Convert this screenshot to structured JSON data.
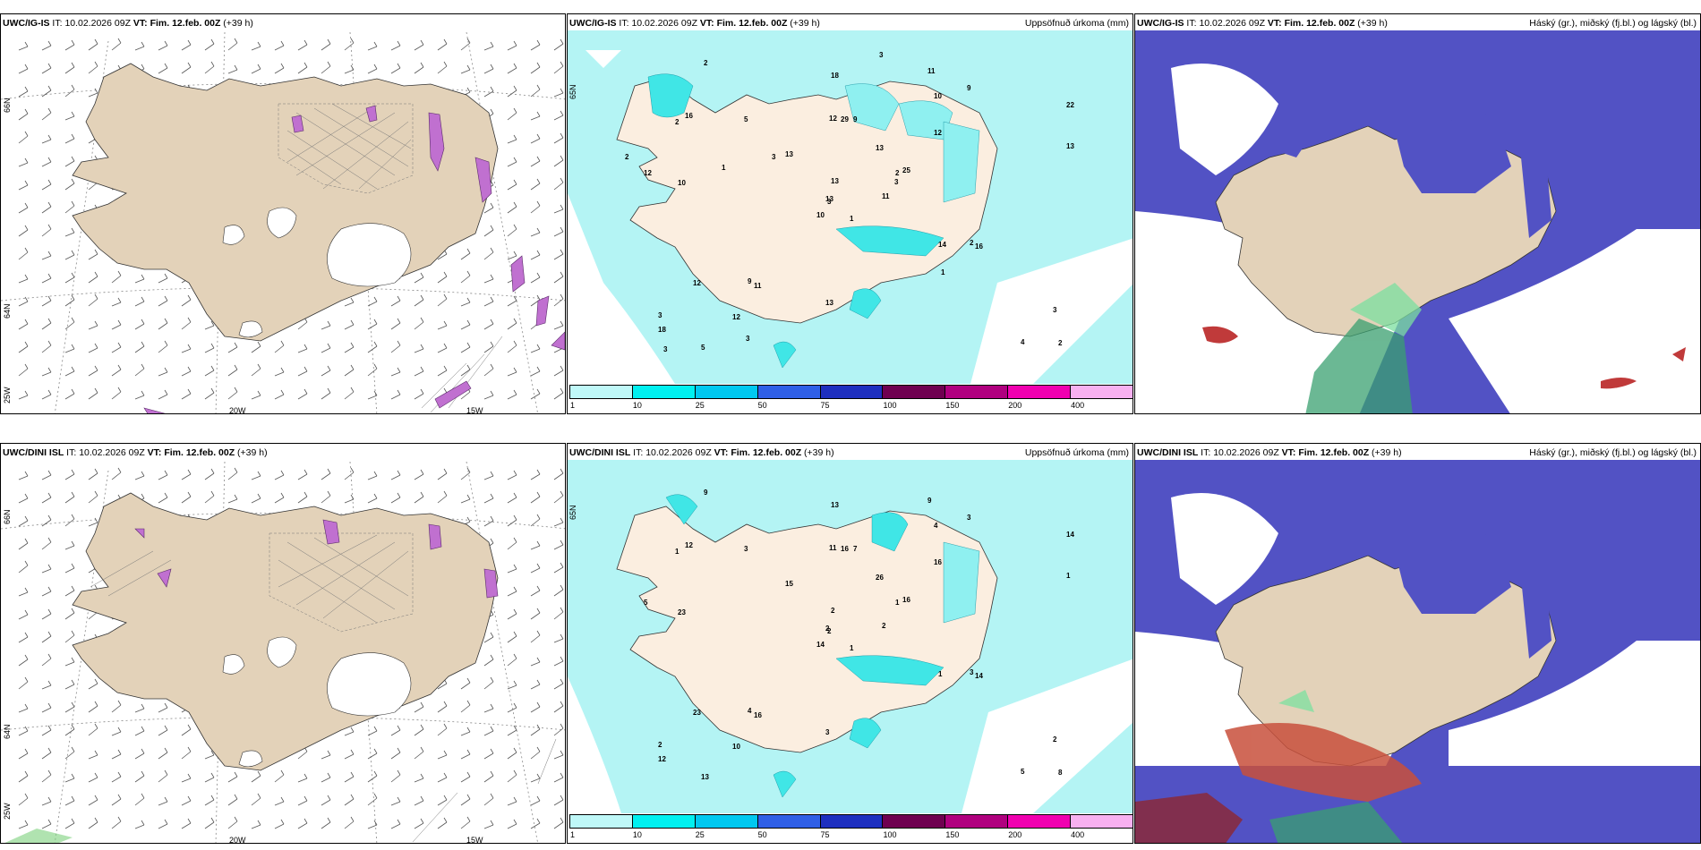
{
  "rows": [
    {
      "model": "UWC/IG-IS",
      "panels": [
        {
          "kind": "wind",
          "model": "UWC/IG-IS",
          "it_label": "IT:",
          "it_value": "10.02.2026 09Z",
          "vt_label": "VT:",
          "vt_value": "Fim. 12.feb. 00Z",
          "lead": "(+39 h)",
          "right_title": "",
          "lon_labels": [
            "20W",
            "15W",
            "25W"
          ],
          "lat_labels": [
            "66N",
            "64N"
          ]
        },
        {
          "kind": "precip",
          "model": "UWC/IG-IS",
          "it_label": "IT:",
          "it_value": "10.02.2026 09Z",
          "vt_label": "VT:",
          "vt_value": "Fim. 12.feb. 00Z",
          "lead": "(+39 h)",
          "right_title": "Uppsöfnuð úrkoma (mm)",
          "lat_labels": [
            "65N"
          ]
        },
        {
          "kind": "cloud",
          "model": "UWC/IG-IS",
          "it_label": "IT:",
          "it_value": "10.02.2026 09Z",
          "vt_label": "VT:",
          "vt_value": "Fim. 12.feb. 00Z",
          "lead": "(+39 h)",
          "right_title": "Háský (gr.), miðský (fj.bl.) og lágský (bl.)"
        }
      ]
    },
    {
      "model": "UWC/DINI ISL",
      "panels": [
        {
          "kind": "wind",
          "model": "UWC/DINI ISL",
          "it_label": "IT:",
          "it_value": "10.02.2026 09Z",
          "vt_label": "VT:",
          "vt_value": "Fim. 12.feb. 00Z",
          "lead": "(+39 h)",
          "right_title": "",
          "lon_labels": [
            "20W",
            "15W",
            "25W"
          ],
          "lat_labels": [
            "66N",
            "64N"
          ]
        },
        {
          "kind": "precip",
          "model": "UWC/DINI ISL",
          "it_label": "IT:",
          "it_value": "10.02.2026 09Z",
          "vt_label": "VT:",
          "vt_value": "Fim. 12.feb. 00Z",
          "lead": "(+39 h)",
          "right_title": "Uppsöfnuð úrkoma (mm)",
          "lat_labels": [
            "65N"
          ]
        },
        {
          "kind": "cloud",
          "model": "UWC/DINI ISL",
          "it_label": "IT:",
          "it_value": "10.02.2026 09Z",
          "vt_label": "VT:",
          "vt_value": "Fim. 12.feb. 00Z",
          "lead": "(+39 h)",
          "right_title": "Háský (gr.), miðský (fj.bl.) og lágský (bl.)"
        }
      ]
    }
  ],
  "colorbar": {
    "ticks": [
      "1",
      "10",
      "25",
      "50",
      "75",
      "100",
      "150",
      "200",
      "400"
    ],
    "colors": [
      "#bff8f8",
      "#00f0f0",
      "#00c8f0",
      "#2f5fe6",
      "#1e2fbf",
      "#6f0050",
      "#b0007f",
      "#f000b0",
      "#f8b0f0"
    ]
  },
  "precip_values": {
    "top": [
      "1",
      "2",
      "3",
      "3",
      "2",
      "11",
      "11",
      "9",
      "10",
      "11",
      "2",
      "2",
      "10",
      "22",
      "10",
      "12",
      "5",
      "12",
      "13",
      "12",
      "13",
      "18",
      "12",
      "29",
      "25",
      "16",
      "16",
      "18",
      "12",
      "14",
      "13",
      "13",
      "13",
      "13",
      "5",
      "9",
      "9",
      "4",
      "3",
      "2",
      "3",
      "3",
      "1",
      "1",
      "3",
      "2",
      "3",
      "3"
    ],
    "bottom": [
      "1",
      "1",
      "2",
      "2",
      "1",
      "16",
      "9",
      "7",
      "4",
      "2",
      "9",
      "8",
      "23",
      "14",
      "14",
      "16",
      "13",
      "11",
      "26",
      "23",
      "15",
      "12",
      "10",
      "16",
      "16",
      "14",
      "12",
      "13",
      "5",
      "1",
      "1",
      "2",
      "3",
      "2",
      "3",
      "3",
      "4",
      "5",
      "2",
      "3"
    ]
  },
  "colors": {
    "land": "#e3d2b9",
    "sea_precip": "#b4f4f4",
    "cloud_high": "#5252c4",
    "cloud_mid": "#8fb2ec"
  }
}
